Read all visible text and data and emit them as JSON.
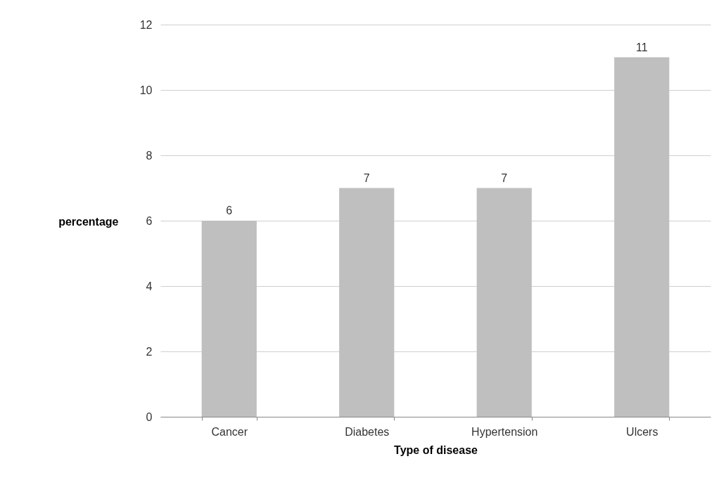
{
  "chart_data": {
    "type": "bar",
    "xlabel": "Type of disease",
    "ylabel": "percentage",
    "categories": [
      "Cancer",
      "Diabetes",
      "Hypertension",
      "Ulcers"
    ],
    "values": [
      6,
      7,
      7,
      11
    ],
    "color": "#bfbfbf",
    "ylim": [
      0,
      12
    ],
    "yticks": [
      0,
      2,
      4,
      6,
      8,
      10,
      12
    ],
    "grid": "y",
    "data_labels": true
  }
}
